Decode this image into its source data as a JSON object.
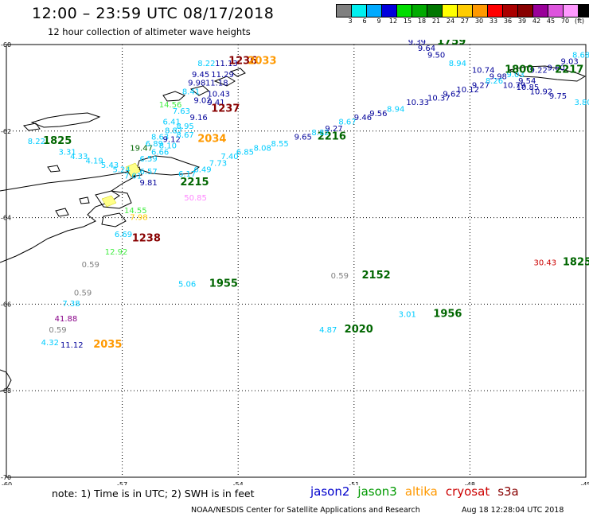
{
  "header": {
    "title": "12:00 – 23:59 UTC 08/17/2018",
    "subtitle": "12 hour collection of altimeter wave heights"
  },
  "legend": {
    "colors": [
      "#808080",
      "#00f0f0",
      "#00aaff",
      "#0000dd",
      "#00dd00",
      "#00aa00",
      "#007700",
      "#ffff00",
      "#ffcc00",
      "#ff9900",
      "#ff0000",
      "#aa0000",
      "#880000",
      "#990099",
      "#dd55dd",
      "#ff99ff",
      "#000000"
    ],
    "labels": [
      "3",
      "6",
      "9",
      "12",
      "15",
      "18",
      "21",
      "24",
      "27",
      "30",
      "33",
      "36",
      "39",
      "42",
      "45",
      "70",
      "(ft)"
    ]
  },
  "axes": {
    "x_ticks": [
      "-57",
      "-54",
      "-51",
      "-48",
      "-45"
    ],
    "x_left_label": "-60",
    "y_ticks": [
      "-60",
      "-62",
      "-64",
      "-66",
      "-68",
      "-70"
    ]
  },
  "chart_data": {
    "type": "scatter",
    "xlim": [
      -60,
      -45
    ],
    "ylim": [
      -70,
      -60
    ],
    "unit": "ft",
    "values": [
      {
        "lon": -59.45,
        "lat": -62.3,
        "value": "8.22",
        "color": "#00ccff"
      },
      {
        "lon": -58.65,
        "lat": -62.55,
        "value": "3.31",
        "color": "#00ccff"
      },
      {
        "lon": -58.35,
        "lat": -62.65,
        "value": "4.33",
        "color": "#00ccff"
      },
      {
        "lon": -57.95,
        "lat": -62.75,
        "value": "4.19",
        "color": "#00ccff"
      },
      {
        "lon": -57.55,
        "lat": -62.85,
        "value": "5.43",
        "color": "#00ccff"
      },
      {
        "lon": -57.25,
        "lat": -62.95,
        "value": "5.24",
        "color": "#00ccff"
      },
      {
        "lon": -56.95,
        "lat": -63.1,
        "value": "7.01",
        "color": "#00ccff"
      },
      {
        "lon": -56.8,
        "lat": -62.45,
        "value": "19.47",
        "color": "#006600"
      },
      {
        "lon": -56.55,
        "lat": -62.7,
        "value": "6.59",
        "color": "#00ccff"
      },
      {
        "lon": -56.25,
        "lat": -62.55,
        "value": "6.66",
        "color": "#00ccff"
      },
      {
        "lon": -56.55,
        "lat": -63.0,
        "value": "6.57",
        "color": "#00ccff"
      },
      {
        "lon": -56.4,
        "lat": -62.35,
        "value": "6.89",
        "color": "#00ccff"
      },
      {
        "lon": -56.05,
        "lat": -62.4,
        "value": "8.10",
        "color": "#00ccff"
      },
      {
        "lon": -56.25,
        "lat": -62.2,
        "value": "8.63",
        "color": "#00ccff"
      },
      {
        "lon": -55.95,
        "lat": -62.25,
        "value": "9.12",
        "color": "#000099"
      },
      {
        "lon": -55.9,
        "lat": -62.05,
        "value": "8.87",
        "color": "#00ccff"
      },
      {
        "lon": -55.6,
        "lat": -62.15,
        "value": "8.67",
        "color": "#00ccff"
      },
      {
        "lon": -55.95,
        "lat": -61.85,
        "value": "6.41",
        "color": "#00ccff"
      },
      {
        "lon": -55.6,
        "lat": -61.95,
        "value": "8.95",
        "color": "#00ccff"
      },
      {
        "lon": -55.7,
        "lat": -61.6,
        "value": "7.63",
        "color": "#00ccff"
      },
      {
        "lon": -55.25,
        "lat": -61.75,
        "value": "9.16",
        "color": "#000099"
      },
      {
        "lon": -56.05,
        "lat": -61.45,
        "value": "14.56",
        "color": "#44ee44"
      },
      {
        "lon": -55.15,
        "lat": -61.35,
        "value": "9.02",
        "color": "#000099"
      },
      {
        "lon": -54.8,
        "lat": -61.4,
        "value": "9.41",
        "color": "#000099"
      },
      {
        "lon": -54.7,
        "lat": -61.55,
        "value": "1237",
        "color": "#880000",
        "time": true
      },
      {
        "lon": -55.45,
        "lat": -61.15,
        "value": "8.41",
        "color": "#00ccff"
      },
      {
        "lon": -54.8,
        "lat": -61.2,
        "value": "10.43",
        "color": "#000099"
      },
      {
        "lon": -55.3,
        "lat": -60.95,
        "value": "9.98",
        "color": "#000099"
      },
      {
        "lon": -54.85,
        "lat": -60.95,
        "value": "11.18",
        "color": "#000099"
      },
      {
        "lon": -55.2,
        "lat": -60.75,
        "value": "9.45",
        "color": "#000099"
      },
      {
        "lon": -54.7,
        "lat": -60.75,
        "value": "11.29",
        "color": "#000099"
      },
      {
        "lon": -55.05,
        "lat": -60.5,
        "value": "8.22",
        "color": "#00ccff"
      },
      {
        "lon": -54.6,
        "lat": -60.5,
        "value": "11.13",
        "color": "#000099"
      },
      {
        "lon": -54.25,
        "lat": -60.45,
        "value": "1236",
        "color": "#880000",
        "time": true
      },
      {
        "lon": -53.75,
        "lat": -60.45,
        "value": "2033",
        "color": "#ff9900",
        "time": true
      },
      {
        "lon": -55.05,
        "lat": -62.25,
        "value": "2034",
        "color": "#ff9900",
        "time": true
      },
      {
        "lon": -55.55,
        "lat": -63.05,
        "value": "6.17",
        "color": "#00ccff"
      },
      {
        "lon": -55.15,
        "lat": -62.95,
        "value": "6.49",
        "color": "#00ccff"
      },
      {
        "lon": -54.75,
        "lat": -62.8,
        "value": "7.73",
        "color": "#00ccff"
      },
      {
        "lon": -54.45,
        "lat": -62.65,
        "value": "7.40",
        "color": "#00ccff"
      },
      {
        "lon": -54.05,
        "lat": -62.55,
        "value": "6.85",
        "color": "#00ccff"
      },
      {
        "lon": -53.6,
        "lat": -62.45,
        "value": "8.08",
        "color": "#00ccff"
      },
      {
        "lon": -53.15,
        "lat": -62.35,
        "value": "8.55",
        "color": "#00ccff"
      },
      {
        "lon": -52.55,
        "lat": -62.2,
        "value": "9.65",
        "color": "#000099"
      },
      {
        "lon": -51.95,
        "lat": -62.2,
        "value": "2216",
        "color": "#006600",
        "time": true
      },
      {
        "lon": -52.1,
        "lat": -62.1,
        "value": "8.82",
        "color": "#00ccff"
      },
      {
        "lon": -51.75,
        "lat": -62.0,
        "value": "9.27",
        "color": "#000099"
      },
      {
        "lon": -51.4,
        "lat": -61.85,
        "value": "8.67",
        "color": "#00ccff"
      },
      {
        "lon": -51.0,
        "lat": -61.75,
        "value": "9.46",
        "color": "#000099"
      },
      {
        "lon": -50.6,
        "lat": -61.65,
        "value": "9.56",
        "color": "#000099"
      },
      {
        "lon": -50.15,
        "lat": -61.55,
        "value": "8.94",
        "color": "#00ccff"
      },
      {
        "lon": -49.65,
        "lat": -61.4,
        "value": "10.33",
        "color": "#000099"
      },
      {
        "lon": -49.1,
        "lat": -61.3,
        "value": "10.37",
        "color": "#000099"
      },
      {
        "lon": -48.7,
        "lat": -61.2,
        "value": "9.62",
        "color": "#000099"
      },
      {
        "lon": -48.35,
        "lat": -61.1,
        "value": "10.12",
        "color": "#000099"
      },
      {
        "lon": -47.95,
        "lat": -61.0,
        "value": "9.27",
        "color": "#000099"
      },
      {
        "lon": -47.6,
        "lat": -60.9,
        "value": "8.26",
        "color": "#00ccff"
      },
      {
        "lon": -47.15,
        "lat": -61.0,
        "value": "10.79",
        "color": "#000099"
      },
      {
        "lon": -46.8,
        "lat": -61.05,
        "value": "10.85",
        "color": "#000099"
      },
      {
        "lon": -46.45,
        "lat": -61.15,
        "value": "10.92",
        "color": "#000099"
      },
      {
        "lon": -45.95,
        "lat": -61.25,
        "value": "9.75",
        "color": "#000099"
      },
      {
        "lon": -45.3,
        "lat": -61.4,
        "value": "3.80",
        "color": "#00ccff"
      },
      {
        "lon": -47.5,
        "lat": -60.8,
        "value": "9.98",
        "color": "#000099"
      },
      {
        "lon": -47.05,
        "lat": -60.75,
        "value": "9.03",
        "color": "#00ccff"
      },
      {
        "lon": -46.75,
        "lat": -60.9,
        "value": "9.54",
        "color": "#000099"
      },
      {
        "lon": -46.45,
        "lat": -60.65,
        "value": "9.22",
        "color": "#000099"
      },
      {
        "lon": -46.0,
        "lat": -60.6,
        "value": "9.60",
        "color": "#000099"
      },
      {
        "lon": -45.65,
        "lat": -60.45,
        "value": "9.03",
        "color": "#000099"
      },
      {
        "lon": -45.35,
        "lat": -60.3,
        "value": "8.68",
        "color": "#00ccff"
      },
      {
        "lon": -45.8,
        "lat": -60.65,
        "value": "2217",
        "color": "#006600",
        "time": true
      },
      {
        "lon": -47.1,
        "lat": -60.65,
        "value": "1800",
        "color": "#006600",
        "time": true
      },
      {
        "lon": -48.55,
        "lat": -60.5,
        "value": "8.94",
        "color": "#00ccff"
      },
      {
        "lon": -47.95,
        "lat": -60.65,
        "value": "10.74",
        "color": "#000099"
      },
      {
        "lon": -49.1,
        "lat": -60.3,
        "value": "9.50",
        "color": "#000099"
      },
      {
        "lon": -49.35,
        "lat": -60.15,
        "value": "9.64",
        "color": "#000099"
      },
      {
        "lon": -49.6,
        "lat": -60.0,
        "value": "9.39",
        "color": "#000099"
      },
      {
        "lon": -48.85,
        "lat": -60.0,
        "value": "1759",
        "color": "#006600",
        "time": true
      },
      {
        "lon": -59.05,
        "lat": -62.3,
        "value": "1825",
        "color": "#006600",
        "time": true
      },
      {
        "lon": -56.55,
        "lat": -63.25,
        "value": "9.81",
        "color": "#000099"
      },
      {
        "lon": -55.5,
        "lat": -63.25,
        "value": "2215",
        "color": "#006600",
        "time": true
      },
      {
        "lon": -55.4,
        "lat": -63.6,
        "value": "50.85",
        "color": "#ff88ff"
      },
      {
        "lon": -56.8,
        "lat": -64.05,
        "value": "7.98",
        "color": "#ffcc00"
      },
      {
        "lon": -56.95,
        "lat": -63.9,
        "value": "14.55",
        "color": "#44ee44"
      },
      {
        "lon": -57.2,
        "lat": -64.45,
        "value": "6.69",
        "color": "#00ccff"
      },
      {
        "lon": -56.75,
        "lat": -64.55,
        "value": "1238",
        "color": "#880000",
        "time": true
      },
      {
        "lon": -57.45,
        "lat": -64.85,
        "value": "12.92",
        "color": "#44ee44"
      },
      {
        "lon": -58.05,
        "lat": -65.15,
        "value": "0.59",
        "color": "#808080"
      },
      {
        "lon": -58.25,
        "lat": -65.8,
        "value": "0.59",
        "color": "#808080"
      },
      {
        "lon": -58.55,
        "lat": -66.05,
        "value": "7.38",
        "color": "#00ccff"
      },
      {
        "lon": -58.75,
        "lat": -66.4,
        "value": "41.88",
        "color": "#880088"
      },
      {
        "lon": -58.9,
        "lat": -66.65,
        "value": "0.59",
        "color": "#808080"
      },
      {
        "lon": -59.1,
        "lat": -66.95,
        "value": "4.32",
        "color": "#00ccff"
      },
      {
        "lon": -58.6,
        "lat": -67.0,
        "value": "11.12",
        "color": "#000099"
      },
      {
        "lon": -57.75,
        "lat": -67.0,
        "value": "2035",
        "color": "#ff9900",
        "time": true
      },
      {
        "lon": -55.55,
        "lat": -65.6,
        "value": "5.06",
        "color": "#00ccff"
      },
      {
        "lon": -54.75,
        "lat": -65.6,
        "value": "1955",
        "color": "#006600",
        "time": true
      },
      {
        "lon": -51.6,
        "lat": -65.4,
        "value": "0.59",
        "color": "#808080"
      },
      {
        "lon": -50.8,
        "lat": -65.4,
        "value": "2152",
        "color": "#006600",
        "time": true
      },
      {
        "lon": -46.35,
        "lat": -65.1,
        "value": "30.43",
        "color": "#cc0000"
      },
      {
        "lon": -45.6,
        "lat": -65.1,
        "value": "1825",
        "color": "#006600",
        "time": true
      },
      {
        "lon": -49.85,
        "lat": -66.3,
        "value": "3.01",
        "color": "#00ccff"
      },
      {
        "lon": -48.95,
        "lat": -66.3,
        "value": "1956",
        "color": "#006600",
        "time": true
      },
      {
        "lon": -51.9,
        "lat": -66.65,
        "value": "4.87",
        "color": "#00ccff"
      },
      {
        "lon": -51.25,
        "lat": -66.65,
        "value": "2020",
        "color": "#006600",
        "time": true
      }
    ]
  },
  "footer": {
    "note": "note:  1) Time is in UTC;  2) SWH is in feet",
    "satellites": [
      {
        "name": "jason2",
        "color": "#0000cc"
      },
      {
        "name": "jason3",
        "color": "#009900"
      },
      {
        "name": "altika",
        "color": "#ff9900"
      },
      {
        "name": "cryosat",
        "color": "#cc0000"
      },
      {
        "name": "s3a",
        "color": "#880000"
      }
    ],
    "credit": "NOAA/NESDIS Center for Satellite Applications and Research",
    "timestamp": "Aug 18 12:28:04 UTC 2018"
  }
}
